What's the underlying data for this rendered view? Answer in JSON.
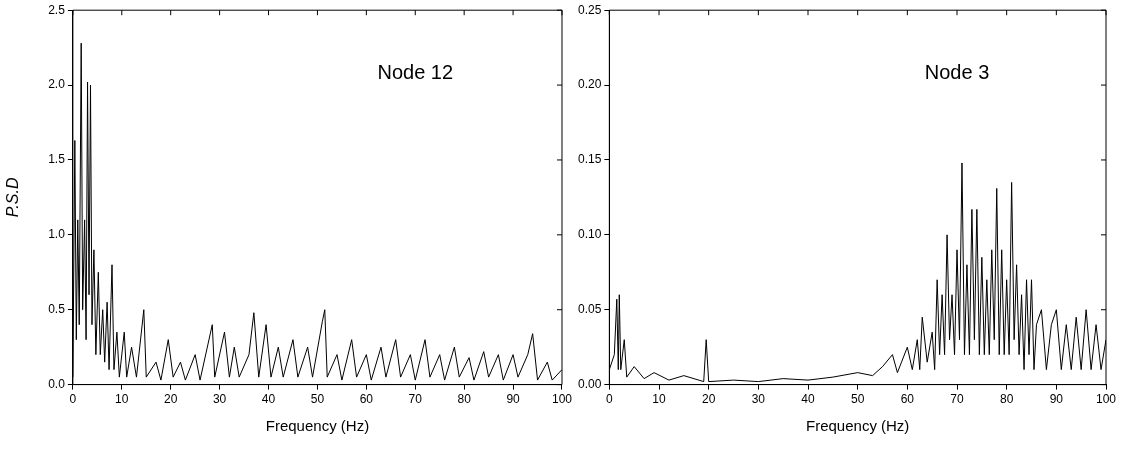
{
  "chart_data": [
    {
      "type": "line",
      "xlabel": "Frequency (Hz)",
      "ylabel": "P.S.D",
      "annotations": [
        "Node 12"
      ],
      "legend": false,
      "grid": false,
      "marker": "none",
      "xlim": [
        0,
        100
      ],
      "ylim": [
        0,
        2.5
      ],
      "xticks": [
        0,
        10,
        20,
        30,
        40,
        50,
        60,
        70,
        80,
        90,
        100
      ],
      "yticks": [
        {
          "value": 0,
          "label": "0.0"
        },
        {
          "value": 0.5,
          "label": "0.5"
        },
        {
          "value": 1,
          "label": "1.0"
        },
        {
          "value": 1.5,
          "label": "1.5"
        },
        {
          "value": 2,
          "label": "2.0"
        },
        {
          "value": 2.5,
          "label": "2.5"
        }
      ],
      "series": [
        {
          "color": "#000000",
          "x": [
            0,
            0.4,
            0.7,
            1,
            1.3,
            1.7,
            2,
            2.4,
            2.7,
            3,
            3.3,
            3.6,
            3.9,
            4.3,
            4.7,
            5.2,
            5.6,
            6.1,
            6.5,
            7,
            7.4,
            8,
            8.4,
            9,
            9.5,
            10.5,
            11,
            12,
            13,
            14.5,
            15,
            17,
            18,
            19.5,
            20.5,
            22,
            23,
            25,
            26,
            28.5,
            29,
            31,
            32,
            33,
            34,
            36,
            37,
            38,
            39.5,
            40.5,
            42,
            43,
            45,
            46,
            48,
            49,
            51,
            51.5,
            52,
            54,
            55,
            57,
            58,
            60,
            61,
            63,
            64,
            66,
            67,
            69,
            70,
            72,
            73,
            75,
            76,
            78,
            79,
            81,
            82,
            84,
            85,
            87,
            88,
            90,
            91,
            93,
            94,
            95,
            97,
            98,
            100
          ],
          "values": [
            0.05,
            1.63,
            0.3,
            1.1,
            0.4,
            2.28,
            0.5,
            1.1,
            0.3,
            2.02,
            0.6,
            2,
            0.4,
            0.9,
            0.2,
            0.75,
            0.2,
            0.5,
            0.15,
            0.55,
            0.1,
            0.8,
            0.1,
            0.35,
            0.05,
            0.35,
            0.05,
            0.25,
            0.05,
            0.5,
            0.05,
            0.15,
            0.03,
            0.3,
            0.05,
            0.15,
            0.03,
            0.2,
            0.03,
            0.4,
            0.05,
            0.35,
            0.05,
            0.25,
            0.05,
            0.2,
            0.48,
            0.05,
            0.4,
            0.05,
            0.25,
            0.05,
            0.3,
            0.05,
            0.25,
            0.05,
            0.42,
            0.5,
            0.05,
            0.2,
            0.03,
            0.3,
            0.05,
            0.2,
            0.03,
            0.25,
            0.05,
            0.3,
            0.05,
            0.2,
            0.03,
            0.3,
            0.05,
            0.2,
            0.03,
            0.25,
            0.05,
            0.18,
            0.03,
            0.22,
            0.05,
            0.2,
            0.03,
            0.2,
            0.05,
            0.2,
            0.34,
            0.03,
            0.15,
            0.03,
            0.1
          ]
        }
      ]
    },
    {
      "type": "line",
      "xlabel": "Frequency (Hz)",
      "annotations": [
        "Node 3"
      ],
      "legend": false,
      "grid": false,
      "marker": "none",
      "xlim": [
        0,
        100
      ],
      "ylim": [
        0,
        0.25
      ],
      "xticks": [
        0,
        10,
        20,
        30,
        40,
        50,
        60,
        70,
        80,
        90,
        100
      ],
      "yticks": [
        {
          "value": 0,
          "label": "0.00"
        },
        {
          "value": 0.05,
          "label": "0.05"
        },
        {
          "value": 0.1,
          "label": "0.10"
        },
        {
          "value": 0.15,
          "label": "0.15"
        },
        {
          "value": 0.2,
          "label": "0.20"
        },
        {
          "value": 0.25,
          "label": "0.25"
        }
      ],
      "series": [
        {
          "color": "#000000",
          "x": [
            0,
            1,
            1.5,
            1.8,
            2,
            2.3,
            3,
            3.5,
            5,
            7,
            9,
            12,
            15,
            19,
            19.5,
            20,
            25,
            30,
            35,
            40,
            45,
            50,
            53,
            55,
            57,
            58,
            60,
            61,
            62,
            62.5,
            63,
            64,
            65,
            65.5,
            66,
            66.5,
            67,
            67.5,
            68,
            68.5,
            69,
            69.5,
            70,
            70.5,
            71,
            71.5,
            72,
            72.5,
            73,
            73.5,
            74,
            74.5,
            75,
            75.5,
            76,
            76.5,
            77,
            77.5,
            78,
            78.5,
            79,
            79.5,
            80,
            80.5,
            81,
            81.5,
            82,
            82.5,
            83,
            83.5,
            84,
            84.5,
            85,
            85.5,
            86,
            87,
            88,
            89,
            90,
            91,
            92,
            93,
            94,
            95,
            96,
            97,
            98,
            99,
            100
          ],
          "values": [
            0.01,
            0.02,
            0.057,
            0.01,
            0.06,
            0.01,
            0.03,
            0.005,
            0.012,
            0.004,
            0.008,
            0.003,
            0.006,
            0.002,
            0.03,
            0.002,
            0.003,
            0.002,
            0.004,
            0.003,
            0.005,
            0.008,
            0.006,
            0.012,
            0.02,
            0.008,
            0.025,
            0.01,
            0.03,
            0.01,
            0.045,
            0.015,
            0.035,
            0.01,
            0.07,
            0.02,
            0.06,
            0.02,
            0.1,
            0.03,
            0.06,
            0.02,
            0.09,
            0.03,
            0.148,
            0.02,
            0.08,
            0.02,
            0.117,
            0.03,
            0.117,
            0.02,
            0.085,
            0.02,
            0.07,
            0.02,
            0.09,
            0.03,
            0.131,
            0.02,
            0.09,
            0.02,
            0.07,
            0.02,
            0.135,
            0.03,
            0.08,
            0.02,
            0.06,
            0.01,
            0.07,
            0.02,
            0.07,
            0.01,
            0.04,
            0.05,
            0.01,
            0.04,
            0.05,
            0.01,
            0.04,
            0.01,
            0.045,
            0.01,
            0.05,
            0.01,
            0.04,
            0.01,
            0.03
          ]
        }
      ]
    }
  ]
}
